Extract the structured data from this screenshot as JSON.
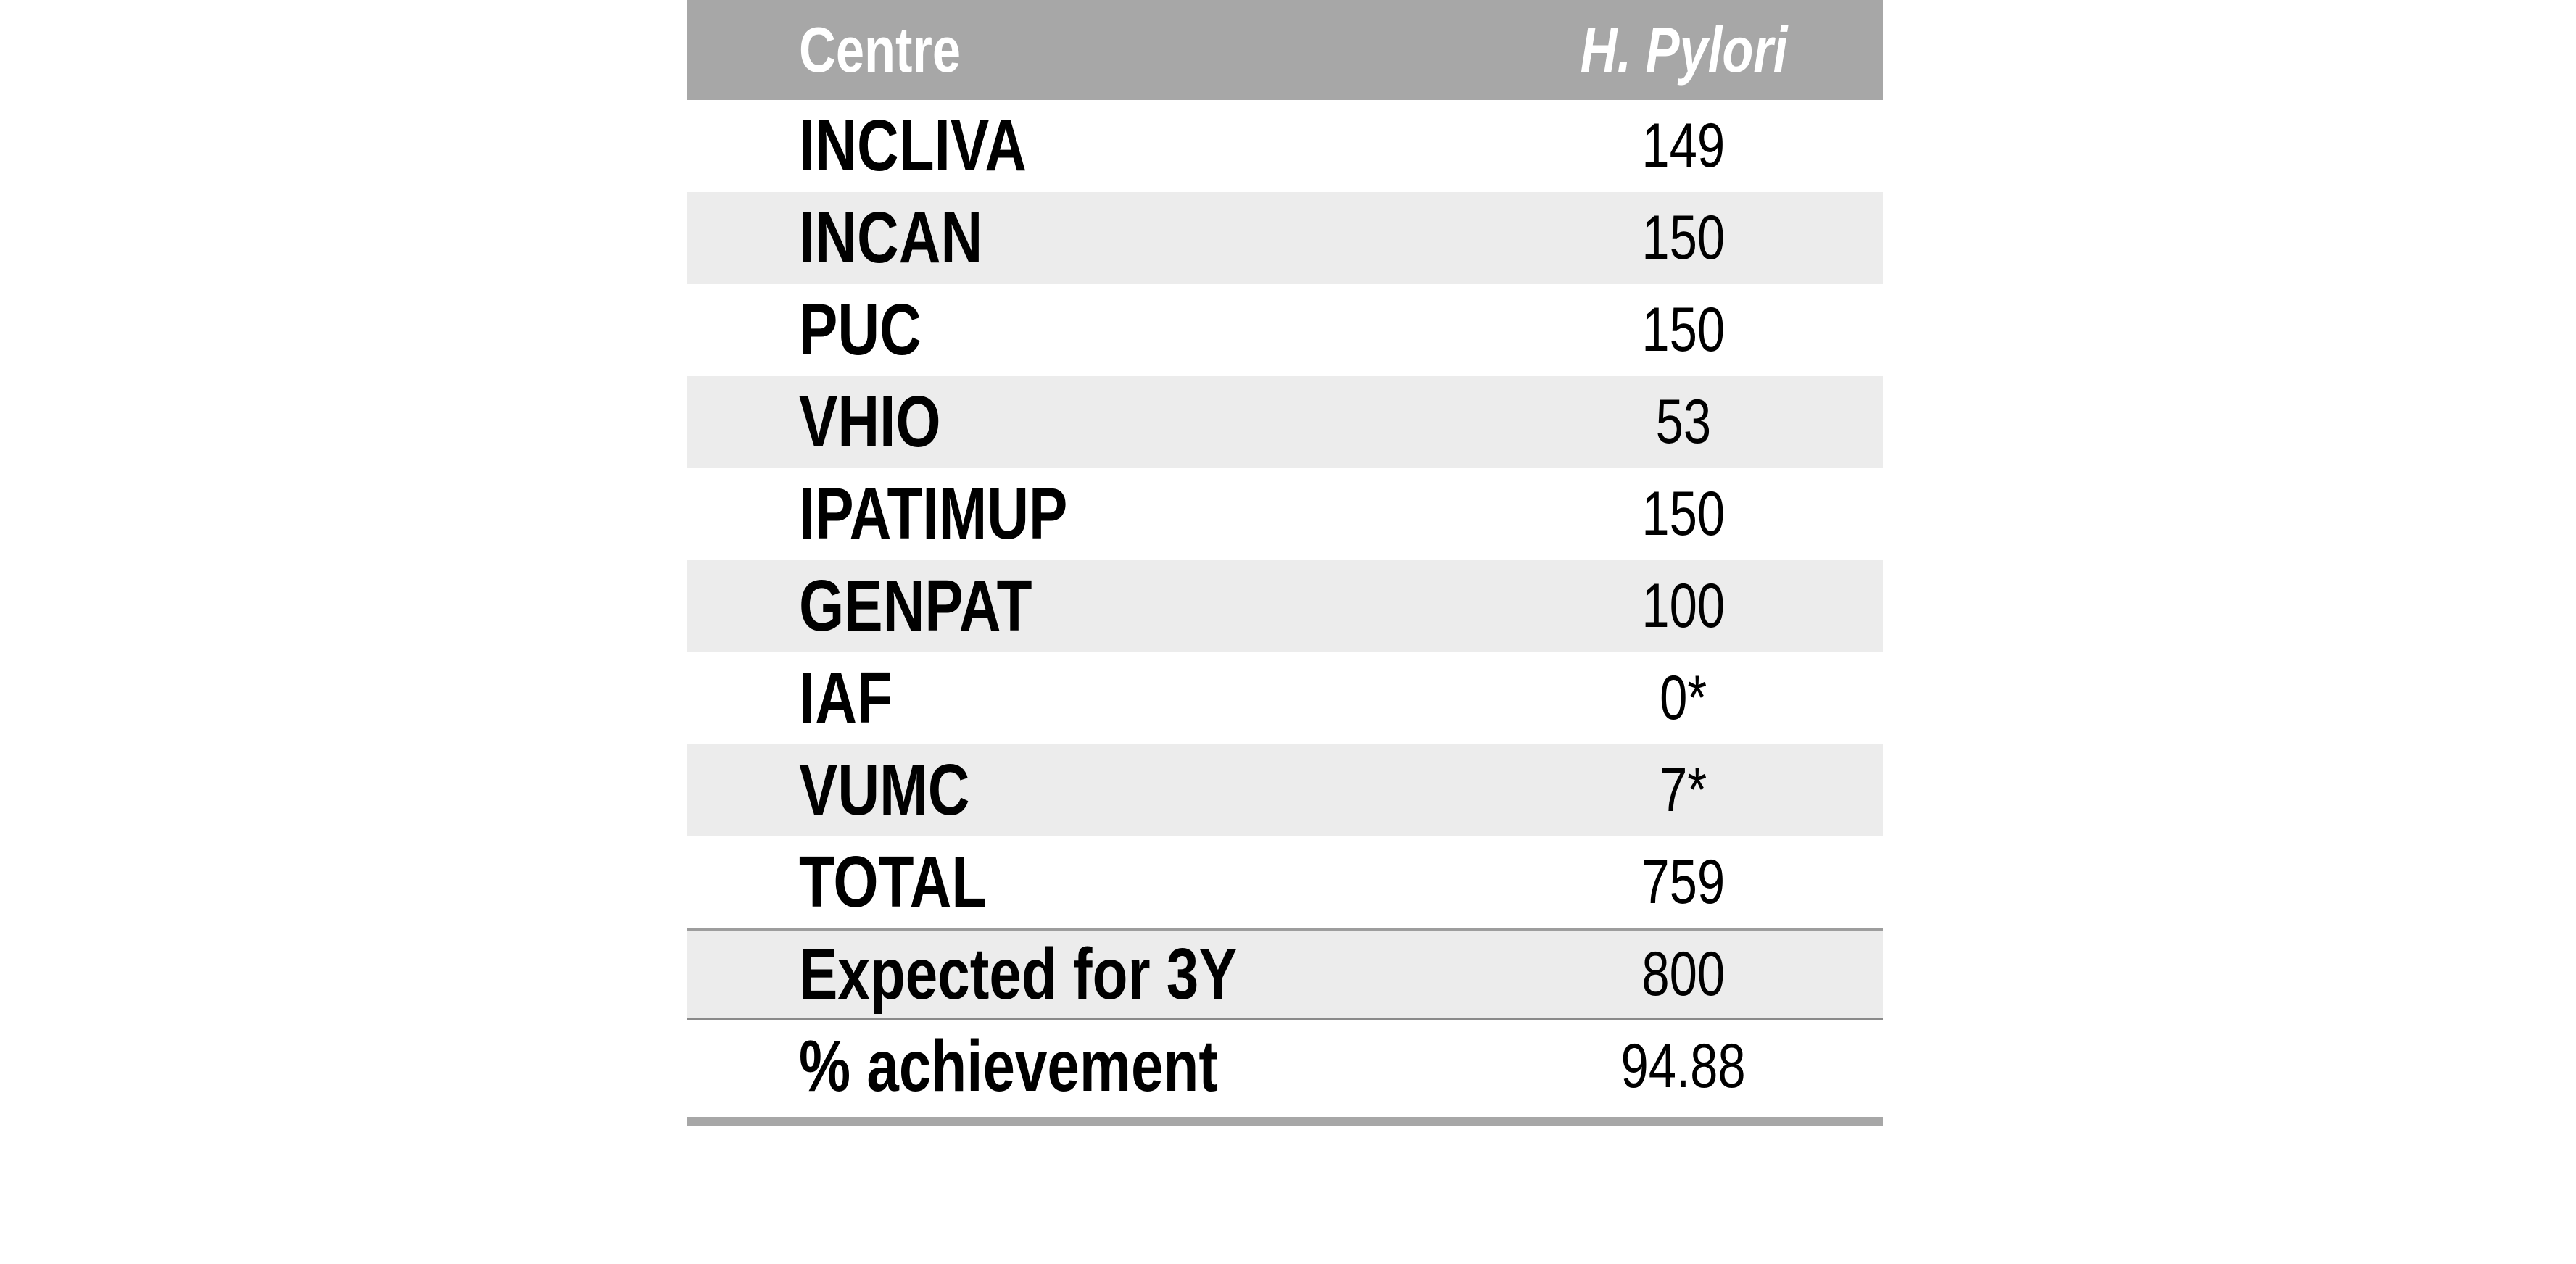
{
  "table": {
    "header": {
      "centre": "Centre",
      "value": "H. Pylori"
    },
    "rows": [
      {
        "centre": "INCLIVA",
        "value": "149"
      },
      {
        "centre": "INCAN",
        "value": "150"
      },
      {
        "centre": "PUC",
        "value": "150"
      },
      {
        "centre": "VHIO",
        "value": "53"
      },
      {
        "centre": "IPATIMUP",
        "value": "150"
      },
      {
        "centre": "GENPAT",
        "value": "100"
      },
      {
        "centre": "IAF",
        "value": "0*"
      },
      {
        "centre": "VUMC",
        "value": "7*"
      },
      {
        "centre": "TOTAL",
        "value": "759"
      },
      {
        "centre": "Expected for 3Y",
        "value": "800"
      },
      {
        "centre": "% achievement",
        "value": "94.88"
      }
    ],
    "colors": {
      "header_bg": "#a7a7a7",
      "header_text": "#ffffff",
      "row_alt_bg": "#ececec",
      "row_text": "#000000",
      "rule_top": "#9d9d9d",
      "rule_bottom": "#8a8a8a",
      "bottom_bar": "#a7a7a7"
    }
  }
}
